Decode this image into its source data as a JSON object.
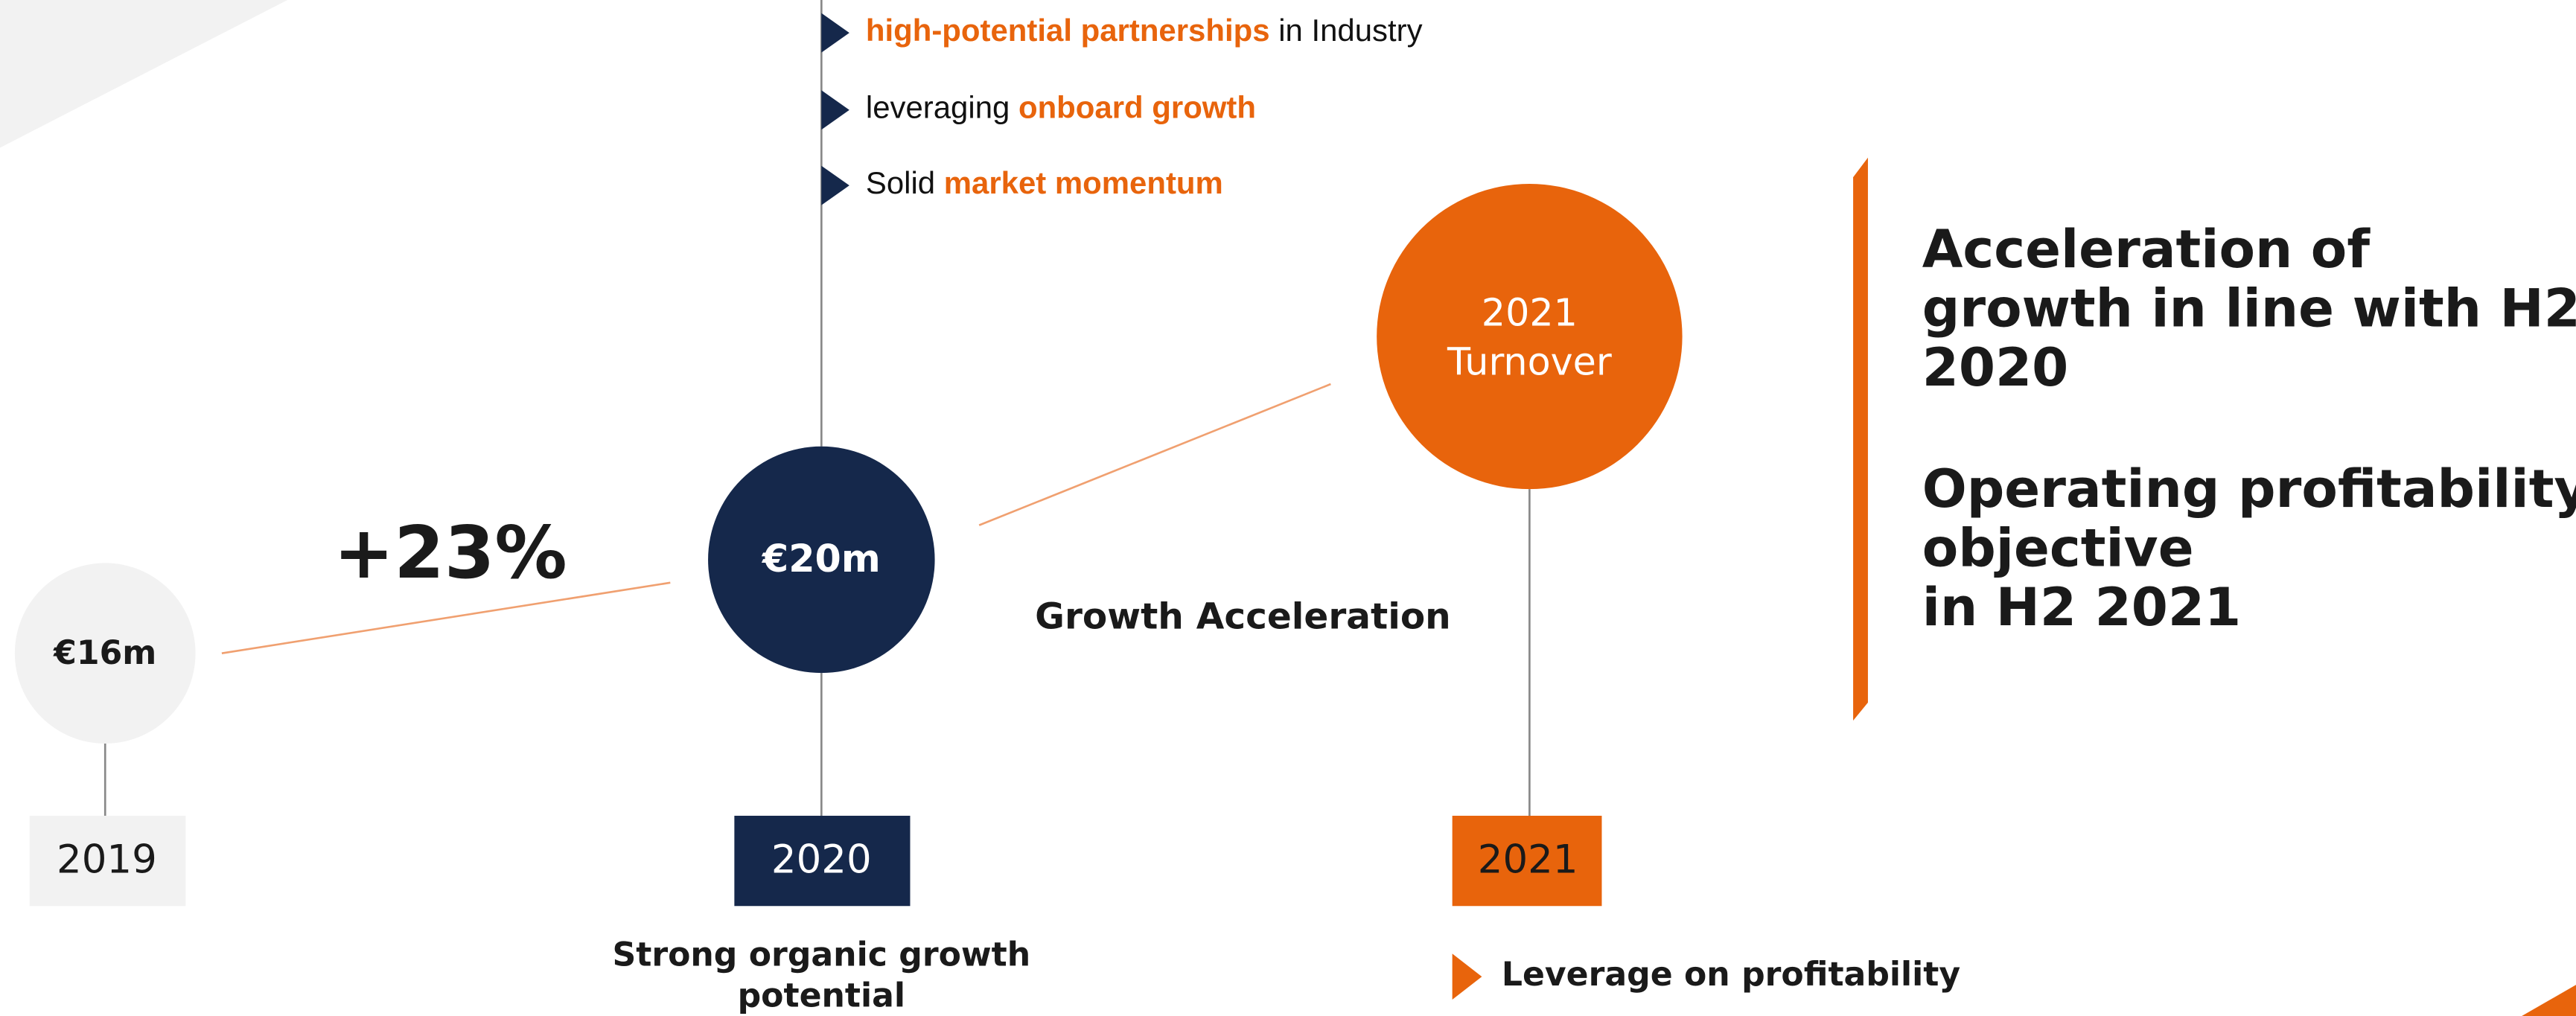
{
  "bullets_top": [
    [
      {
        "text": "high-potential partnerships",
        "highlight": true
      },
      {
        "text": " in Industry",
        "highlight": false
      }
    ],
    [
      {
        "text": "leveraging ",
        "highlight": false
      },
      {
        "text": "onboard growth",
        "highlight": true
      }
    ],
    [
      {
        "text": "Solid ",
        "highlight": false
      },
      {
        "text": "market momentum",
        "highlight": true
      }
    ]
  ],
  "nodes": [
    {
      "value": "€16m",
      "year": "2019"
    },
    {
      "value": "€20m",
      "year": "2020"
    },
    {
      "value_lines": [
        "2021",
        "Turnover"
      ],
      "year": "2021"
    }
  ],
  "growth_label": "+23%",
  "acceleration_label": "Growth Acceleration",
  "caption_2020": [
    "Strong organic growth",
    "potential"
  ],
  "bullet_2021": "Leverage on profitability",
  "objectives": [
    [
      "Acceleration of",
      "growth in line with H2",
      "2020"
    ],
    [
      "Operating profitability",
      "objective",
      "in H2 2021"
    ]
  ]
}
